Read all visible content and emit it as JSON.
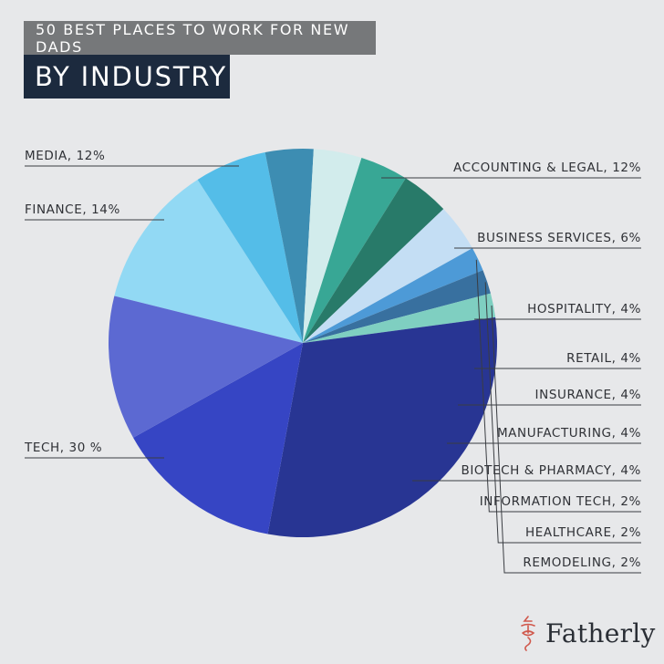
{
  "header": {
    "subtitle": "50 BEST PLACES TO WORK FOR NEW DADS",
    "title": "BY INDUSTRY"
  },
  "brand": {
    "name": "Fatherly",
    "logo_icon": "fatherly-logo-icon",
    "logo_color": "#d0584c"
  },
  "chart_data": {
    "type": "pie",
    "title": "BY INDUSTRY",
    "subtitle": "50 BEST PLACES TO WORK FOR NEW DADS",
    "legend": "none",
    "slices": [
      {
        "label": "ACCOUNTING & LEGAL, 12%",
        "value": 12,
        "color": "#92d9f4"
      },
      {
        "label": "BUSINESS SERVICES, 6%",
        "value": 6,
        "color": "#54bde8"
      },
      {
        "label": "HOSPITALITY, 4%",
        "value": 4,
        "color": "#3d8db2"
      },
      {
        "label": "RETAIL, 4%",
        "value": 4,
        "color": "#d2ecec"
      },
      {
        "label": "INSURANCE, 4%",
        "value": 4,
        "color": "#38a795"
      },
      {
        "label": "MANUFACTURING, 4%",
        "value": 4,
        "color": "#287a69"
      },
      {
        "label": "BIOTECH & PHARMACY, 4%",
        "value": 4,
        "color": "#c4def4"
      },
      {
        "label": "INFORMATION TECH, 2%",
        "value": 2,
        "color": "#4d9ad7"
      },
      {
        "label": "HEALTHCARE, 2%",
        "value": 2,
        "color": "#38709f"
      },
      {
        "label": "REMODELING, 2%",
        "value": 2,
        "color": "#7fcfc1"
      },
      {
        "label": "TECH, 30 %",
        "value": 30,
        "color": "#283593"
      },
      {
        "label": "FINANCE, 14%",
        "value": 14,
        "color": "#3645c4"
      },
      {
        "label": "MEDIA, 12%",
        "value": 12,
        "color": "#5c69d2"
      }
    ]
  }
}
